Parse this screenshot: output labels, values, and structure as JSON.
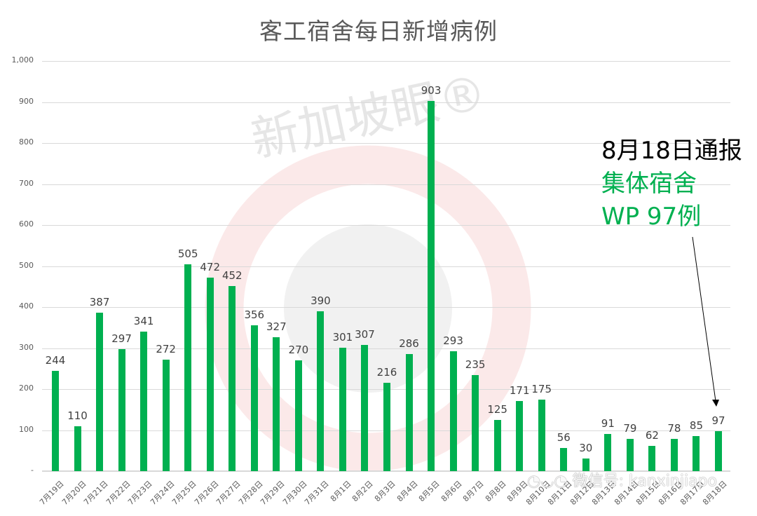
{
  "chart_data": {
    "type": "bar",
    "title": "客工宿舍每日新增病例",
    "xlabel": "",
    "ylabel": "",
    "ylim": [
      0,
      1000
    ],
    "yticks": [
      "-",
      "100",
      "200",
      "300",
      "400",
      "500",
      "600",
      "700",
      "800",
      "900",
      "1,000"
    ],
    "grid": true,
    "legend": null,
    "bar_color": "#00b050",
    "categories": [
      "7月19日",
      "7月20日",
      "7月21日",
      "7月22日",
      "7月23日",
      "7月24日",
      "7月25日",
      "7月26日",
      "7月27日",
      "7月28日",
      "7月29日",
      "7月30日",
      "7月31日",
      "8月1日",
      "8月2日",
      "8月3日",
      "8月4日",
      "8月5日",
      "8月6日",
      "8月7日",
      "8月8日",
      "8月9日",
      "8月10日",
      "8月11日",
      "8月12日",
      "8月13日",
      "8月14日",
      "8月15日",
      "8月16日",
      "8月17日",
      "8月18日"
    ],
    "values": [
      244,
      110,
      387,
      297,
      341,
      272,
      505,
      472,
      452,
      356,
      327,
      270,
      390,
      301,
      307,
      216,
      286,
      903,
      293,
      235,
      125,
      171,
      175,
      56,
      30,
      91,
      79,
      62,
      78,
      85,
      97
    ],
    "annotations": [
      {
        "text": [
          "8月18日通报",
          "集体宿舍",
          "WP 97例"
        ],
        "points_to": "8月18日",
        "colors": [
          "#000000",
          "#00b050",
          "#00b050"
        ]
      }
    ]
  },
  "page": {
    "title": "客工宿舍每日新增病例",
    "annotation": {
      "line1": "8月18日通报",
      "line2": "集体宿舍",
      "line3": "WP 97例"
    },
    "watermark": {
      "brand": "新加坡眼®",
      "wechat": "微信号: kanxinjiapo"
    }
  }
}
